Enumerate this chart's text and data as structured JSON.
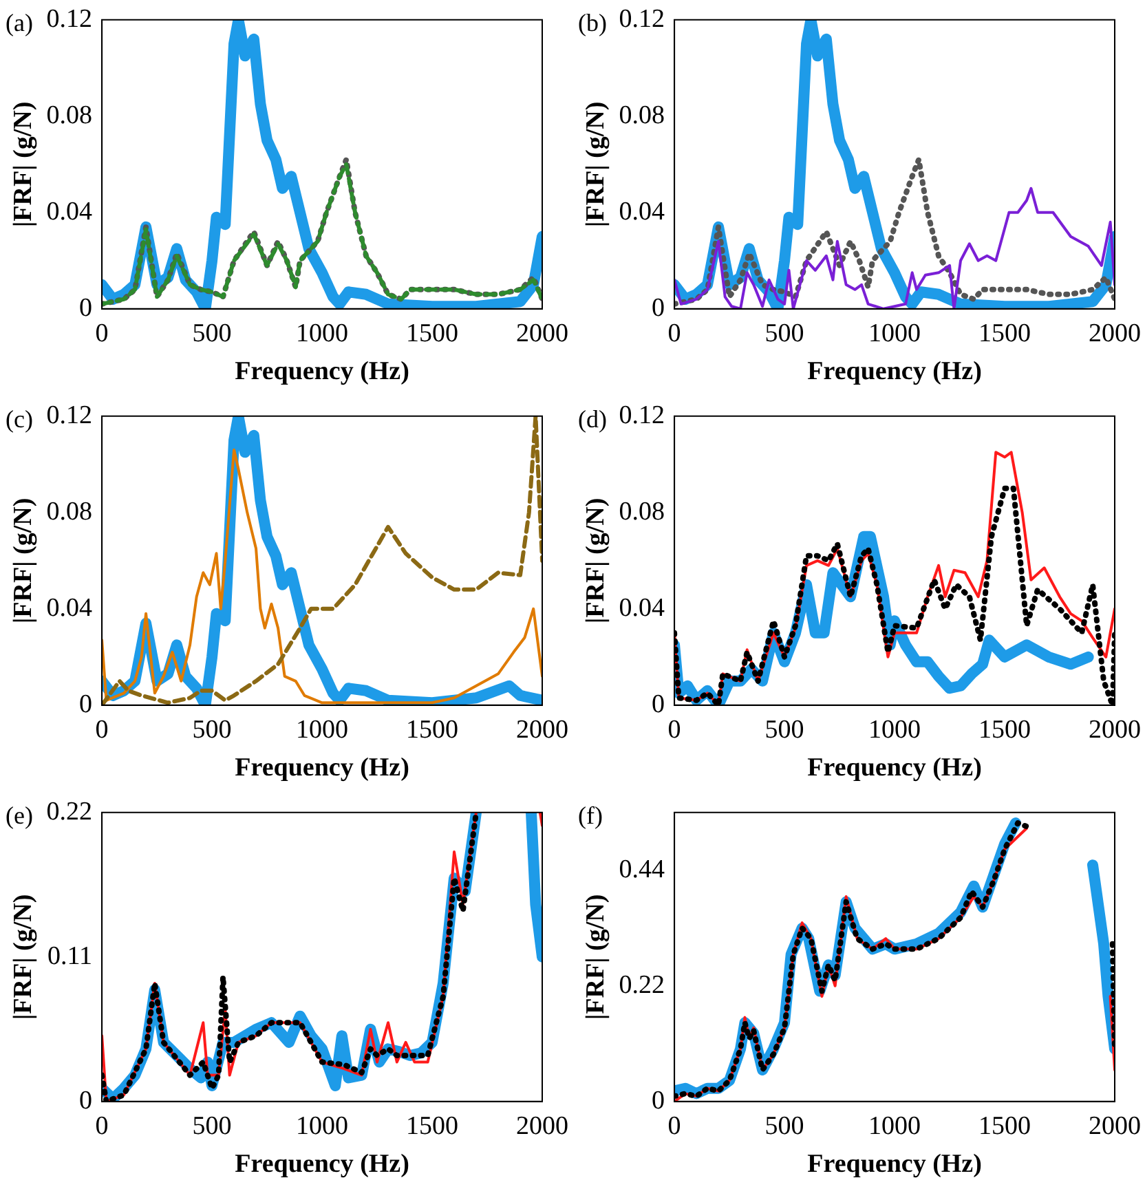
{
  "chart_data": [
    {
      "type": "line",
      "title": "(a)",
      "xlabel": "Frequency (Hz)",
      "ylabel": "|FRF| (g/N)",
      "xlim": [
        0,
        2000
      ],
      "xticks": [
        0,
        500,
        1000,
        1500,
        2000
      ],
      "ylim": [
        0,
        0.12
      ],
      "yticks": [
        0,
        0.04,
        0.08,
        0.12
      ],
      "grid": false,
      "series": [
        {
          "color": "#1e9be8",
          "line_style": "solid",
          "x": [
            0,
            50,
            100,
            150,
            200,
            250,
            300,
            340,
            380,
            430,
            470,
            500,
            520,
            560,
            600,
            620,
            650,
            690,
            720,
            750,
            790,
            820,
            860,
            900,
            940,
            1000,
            1050,
            1080,
            1120,
            1200,
            1300,
            1500,
            1700,
            1900,
            1960,
            2000
          ],
          "values": [
            0.01,
            0.004,
            0.006,
            0.01,
            0.034,
            0.01,
            0.013,
            0.025,
            0.012,
            0.007,
            0.0,
            0.02,
            0.038,
            0.035,
            0.11,
            0.12,
            0.105,
            0.112,
            0.085,
            0.07,
            0.062,
            0.05,
            0.055,
            0.04,
            0.025,
            0.015,
            0.005,
            0.002,
            0.007,
            0.006,
            0.002,
            0.001,
            0.001,
            0.003,
            0.01,
            0.03
          ]
        },
        {
          "color": "#555555",
          "line_style": "dotted",
          "x": [
            0,
            100,
            150,
            200,
            250,
            300,
            340,
            400,
            450,
            500,
            550,
            600,
            690,
            750,
            800,
            840,
            880,
            900,
            980,
            1020,
            1080,
            1110,
            1150,
            1200,
            1250,
            1300,
            1360,
            1400,
            1600,
            1700,
            1800,
            1900,
            1960,
            2000
          ],
          "values": [
            0.002,
            0.004,
            0.008,
            0.034,
            0.005,
            0.012,
            0.023,
            0.01,
            0.008,
            0.007,
            0.005,
            0.02,
            0.032,
            0.018,
            0.028,
            0.02,
            0.009,
            0.02,
            0.028,
            0.04,
            0.055,
            0.062,
            0.04,
            0.022,
            0.015,
            0.006,
            0.004,
            0.008,
            0.008,
            0.006,
            0.006,
            0.008,
            0.013,
            0.004
          ]
        },
        {
          "color": "#2e8b2e",
          "line_style": "dashed",
          "x": [
            0,
            100,
            150,
            200,
            250,
            300,
            340,
            400,
            450,
            500,
            550,
            600,
            690,
            750,
            800,
            840,
            880,
            900,
            980,
            1020,
            1080,
            1110,
            1150,
            1200,
            1250,
            1300,
            1360,
            1400,
            1600,
            1700,
            1800,
            1900,
            1960,
            2000
          ],
          "values": [
            0.002,
            0.004,
            0.008,
            0.033,
            0.005,
            0.012,
            0.022,
            0.01,
            0.008,
            0.007,
            0.005,
            0.02,
            0.031,
            0.018,
            0.027,
            0.02,
            0.009,
            0.02,
            0.028,
            0.04,
            0.055,
            0.06,
            0.04,
            0.022,
            0.015,
            0.006,
            0.004,
            0.008,
            0.008,
            0.006,
            0.006,
            0.008,
            0.012,
            0.004
          ]
        }
      ]
    },
    {
      "type": "line",
      "title": "(b)",
      "xlabel": "Frequency (Hz)",
      "ylabel": "|FRF| (g/N)",
      "xlim": [
        0,
        2000
      ],
      "xticks": [
        0,
        500,
        1000,
        1500,
        2000
      ],
      "ylim": [
        0,
        0.12
      ],
      "yticks": [
        0,
        0.04,
        0.08,
        0.12
      ],
      "grid": false,
      "series": [
        {
          "color": "#1e9be8",
          "line_style": "solid",
          "x": [
            0,
            50,
            100,
            150,
            200,
            250,
            300,
            340,
            380,
            430,
            470,
            500,
            520,
            560,
            600,
            620,
            650,
            690,
            720,
            750,
            790,
            820,
            860,
            900,
            940,
            1000,
            1050,
            1080,
            1120,
            1200,
            1300,
            1500,
            1700,
            1900,
            1960,
            2000
          ],
          "values": [
            0.01,
            0.004,
            0.006,
            0.01,
            0.034,
            0.01,
            0.013,
            0.025,
            0.012,
            0.007,
            0.0,
            0.02,
            0.038,
            0.035,
            0.11,
            0.12,
            0.105,
            0.112,
            0.085,
            0.07,
            0.062,
            0.05,
            0.055,
            0.04,
            0.025,
            0.015,
            0.005,
            0.002,
            0.007,
            0.006,
            0.002,
            0.001,
            0.001,
            0.003,
            0.01,
            0.03
          ]
        },
        {
          "color": "#555555",
          "line_style": "dotted",
          "x": [
            0,
            100,
            150,
            200,
            250,
            300,
            340,
            400,
            450,
            500,
            550,
            600,
            690,
            750,
            800,
            840,
            880,
            900,
            980,
            1020,
            1080,
            1110,
            1150,
            1200,
            1250,
            1300,
            1360,
            1400,
            1600,
            1700,
            1800,
            1900,
            1960,
            2000
          ],
          "values": [
            0.002,
            0.004,
            0.008,
            0.034,
            0.005,
            0.012,
            0.023,
            0.01,
            0.008,
            0.007,
            0.005,
            0.02,
            0.032,
            0.018,
            0.028,
            0.02,
            0.009,
            0.02,
            0.028,
            0.04,
            0.055,
            0.062,
            0.04,
            0.022,
            0.015,
            0.006,
            0.004,
            0.008,
            0.008,
            0.006,
            0.006,
            0.008,
            0.013,
            0.004
          ]
        },
        {
          "color": "#7a1fd6",
          "line_style": "solid",
          "x": [
            0,
            30,
            100,
            150,
            200,
            230,
            260,
            300,
            330,
            360,
            400,
            430,
            470,
            500,
            520,
            540,
            600,
            640,
            690,
            720,
            740,
            780,
            820,
            850,
            880,
            950,
            1050,
            1080,
            1100,
            1140,
            1200,
            1250,
            1270,
            1300,
            1340,
            1380,
            1420,
            1460,
            1520,
            1560,
            1600,
            1620,
            1650,
            1720,
            1800,
            1880,
            1940,
            1980,
            2000
          ],
          "values": [
            0.012,
            0.002,
            0.004,
            0.008,
            0.028,
            0.005,
            0.001,
            0.0,
            0.015,
            0.01,
            0.001,
            0.012,
            0.004,
            0.002,
            0.016,
            0.0,
            0.02,
            0.016,
            0.022,
            0.012,
            0.028,
            0.01,
            0.008,
            0.01,
            0.002,
            0.0,
            0.002,
            0.015,
            0.008,
            0.014,
            0.015,
            0.018,
            0.0,
            0.02,
            0.027,
            0.02,
            0.022,
            0.02,
            0.04,
            0.04,
            0.045,
            0.05,
            0.04,
            0.04,
            0.03,
            0.026,
            0.018,
            0.036,
            0.01
          ]
        }
      ]
    },
    {
      "type": "line",
      "title": "(c)",
      "xlabel": "Frequency (Hz)",
      "ylabel": "|FRF| (g/N)",
      "xlim": [
        0,
        2000
      ],
      "xticks": [
        0,
        500,
        1000,
        1500,
        2000
      ],
      "ylim": [
        0,
        0.12
      ],
      "yticks": [
        0,
        0.04,
        0.08,
        0.12
      ],
      "grid": false,
      "series": [
        {
          "color": "#1e9be8",
          "line_style": "solid",
          "x": [
            0,
            50,
            100,
            150,
            200,
            250,
            300,
            340,
            380,
            430,
            470,
            500,
            520,
            560,
            600,
            620,
            650,
            690,
            720,
            750,
            790,
            820,
            860,
            900,
            940,
            1000,
            1050,
            1080,
            1120,
            1200,
            1300,
            1500,
            1700,
            1850,
            1900,
            2000
          ],
          "values": [
            0.01,
            0.004,
            0.006,
            0.01,
            0.034,
            0.01,
            0.013,
            0.025,
            0.012,
            0.007,
            0.0,
            0.02,
            0.038,
            0.035,
            0.11,
            0.12,
            0.105,
            0.112,
            0.085,
            0.07,
            0.062,
            0.05,
            0.055,
            0.04,
            0.025,
            0.015,
            0.005,
            0.002,
            0.007,
            0.006,
            0.002,
            0.001,
            0.003,
            0.008,
            0.004,
            0.002
          ]
        },
        {
          "color": "#e07b00",
          "line_style": "solid",
          "x": [
            0,
            20,
            100,
            150,
            180,
            200,
            240,
            280,
            320,
            360,
            400,
            430,
            460,
            490,
            520,
            540,
            560,
            600,
            620,
            660,
            700,
            720,
            740,
            770,
            800,
            830,
            880,
            920,
            1000,
            1500,
            1600,
            1700,
            1800,
            1870,
            1920,
            1960,
            2000
          ],
          "values": [
            0.027,
            0.002,
            0.005,
            0.01,
            0.02,
            0.038,
            0.005,
            0.012,
            0.022,
            0.01,
            0.025,
            0.045,
            0.055,
            0.05,
            0.063,
            0.04,
            0.06,
            0.106,
            0.098,
            0.08,
            0.065,
            0.04,
            0.032,
            0.042,
            0.032,
            0.012,
            0.01,
            0.004,
            0.001,
            0.001,
            0.003,
            0.008,
            0.013,
            0.022,
            0.028,
            0.04,
            0.012
          ]
        },
        {
          "color": "#8b6914",
          "line_style": "dashed",
          "x": [
            0,
            80,
            120,
            180,
            300,
            400,
            450,
            500,
            560,
            600,
            700,
            800,
            900,
            950,
            1050,
            1150,
            1250,
            1300,
            1380,
            1500,
            1600,
            1700,
            1800,
            1900,
            1940,
            1970,
            2000
          ],
          "values": [
            0.0,
            0.01,
            0.006,
            0.004,
            0.001,
            0.003,
            0.006,
            0.006,
            0.002,
            0.004,
            0.01,
            0.017,
            0.032,
            0.04,
            0.04,
            0.05,
            0.066,
            0.074,
            0.063,
            0.053,
            0.048,
            0.048,
            0.055,
            0.054,
            0.08,
            0.12,
            0.06
          ]
        }
      ]
    },
    {
      "type": "line",
      "title": "(d)",
      "xlabel": "Frequency (Hz)",
      "ylabel": "|FRF| (g/N)",
      "xlim": [
        0,
        2000
      ],
      "xticks": [
        0,
        500,
        1000,
        1500,
        2000
      ],
      "ylim": [
        0,
        0.12
      ],
      "yticks": [
        0,
        0.04,
        0.08,
        0.12
      ],
      "grid": false,
      "series": [
        {
          "color": "#1e9be8",
          "line_style": "solid",
          "x": [
            0,
            20,
            60,
            100,
            150,
            200,
            250,
            300,
            350,
            400,
            450,
            500,
            550,
            600,
            640,
            680,
            720,
            760,
            800,
            860,
            890,
            950,
            980,
            1000,
            1050,
            1100,
            1150,
            1200,
            1250,
            1300,
            1350,
            1400,
            1430,
            1500,
            1600,
            1700,
            1800,
            1880
          ],
          "values": [
            0.025,
            0.005,
            0.008,
            0.002,
            0.006,
            0.0,
            0.01,
            0.01,
            0.015,
            0.01,
            0.03,
            0.018,
            0.03,
            0.05,
            0.03,
            0.03,
            0.055,
            0.05,
            0.045,
            0.07,
            0.07,
            0.045,
            0.025,
            0.035,
            0.025,
            0.018,
            0.018,
            0.012,
            0.007,
            0.008,
            0.013,
            0.017,
            0.027,
            0.02,
            0.025,
            0.02,
            0.017,
            0.02
          ]
        },
        {
          "color": "#ff1a1a",
          "line_style": "solid",
          "x": [
            0,
            20,
            100,
            150,
            200,
            220,
            300,
            330,
            380,
            450,
            500,
            550,
            600,
            650,
            700,
            740,
            800,
            850,
            880,
            920,
            970,
            1000,
            1100,
            1150,
            1200,
            1230,
            1270,
            1320,
            1380,
            1420,
            1460,
            1500,
            1530,
            1580,
            1620,
            1680,
            1750,
            1800,
            1850,
            1900,
            1960,
            2000
          ],
          "values": [
            0.03,
            0.003,
            0.002,
            0.005,
            0.0,
            0.013,
            0.01,
            0.023,
            0.01,
            0.03,
            0.02,
            0.032,
            0.058,
            0.06,
            0.058,
            0.065,
            0.045,
            0.06,
            0.063,
            0.05,
            0.02,
            0.03,
            0.03,
            0.045,
            0.058,
            0.045,
            0.056,
            0.055,
            0.045,
            0.06,
            0.105,
            0.103,
            0.105,
            0.08,
            0.052,
            0.057,
            0.045,
            0.038,
            0.035,
            0.028,
            0.02,
            0.04
          ]
        },
        {
          "color": "#000000",
          "line_style": "dotted",
          "x": [
            0,
            20,
            100,
            150,
            200,
            220,
            300,
            330,
            380,
            450,
            500,
            550,
            600,
            650,
            700,
            740,
            800,
            850,
            880,
            920,
            970,
            1000,
            1100,
            1180,
            1230,
            1280,
            1340,
            1390,
            1440,
            1500,
            1540,
            1600,
            1650,
            1750,
            1850,
            1900,
            1950,
            1990,
            2000
          ],
          "values": [
            0.03,
            0.003,
            0.002,
            0.005,
            0.0,
            0.013,
            0.01,
            0.022,
            0.01,
            0.035,
            0.02,
            0.033,
            0.062,
            0.062,
            0.06,
            0.067,
            0.045,
            0.062,
            0.065,
            0.05,
            0.022,
            0.033,
            0.032,
            0.052,
            0.04,
            0.05,
            0.045,
            0.027,
            0.07,
            0.09,
            0.09,
            0.033,
            0.048,
            0.04,
            0.03,
            0.05,
            0.01,
            0.0,
            0.03
          ]
        }
      ]
    },
    {
      "type": "line",
      "title": "(e)",
      "xlabel": "Frequency (Hz)",
      "ylabel": "|FRF| (g/N)",
      "xlim": [
        0,
        2000
      ],
      "xticks": [
        0,
        500,
        1000,
        1500,
        2000
      ],
      "ylim": [
        0,
        0.22
      ],
      "yticks": [
        0,
        0.11,
        0.22
      ],
      "grid": false,
      "series": [
        {
          "color": "#1e9be8",
          "line_style": "solid",
          "x": [
            0,
            50,
            100,
            150,
            200,
            240,
            280,
            340,
            400,
            450,
            480,
            500,
            550,
            600,
            700,
            770,
            850,
            900,
            950,
            1000,
            1060,
            1090,
            1120,
            1180,
            1220,
            1260,
            1300,
            1350,
            1400,
            1450,
            1500,
            1550,
            1600,
            1650,
            1700,
            1800,
            1950,
            1970,
            2000
          ],
          "values": [
            0.01,
            0.002,
            0.01,
            0.02,
            0.04,
            0.085,
            0.045,
            0.035,
            0.025,
            0.018,
            0.03,
            0.012,
            0.045,
            0.045,
            0.055,
            0.06,
            0.045,
            0.065,
            0.05,
            0.04,
            0.012,
            0.05,
            0.018,
            0.02,
            0.055,
            0.03,
            0.04,
            0.038,
            0.035,
            0.037,
            0.045,
            0.09,
            0.17,
            0.16,
            0.22,
            null,
            0.22,
            0.15,
            0.11
          ]
        },
        {
          "color": "#ff1a1a",
          "line_style": "solid",
          "x": [
            0,
            20,
            100,
            200,
            240,
            280,
            400,
            460,
            480,
            530,
            560,
            580,
            620,
            700,
            770,
            900,
            1000,
            1100,
            1180,
            1220,
            1250,
            1300,
            1340,
            1380,
            1420,
            1480,
            1550,
            1600,
            1640,
            1700,
            1800,
            1990,
            2000
          ],
          "values": [
            0.05,
            0.0,
            0.005,
            0.04,
            0.09,
            0.045,
            0.02,
            0.06,
            0.02,
            0.02,
            0.07,
            0.02,
            0.045,
            0.05,
            0.06,
            0.06,
            0.03,
            0.025,
            0.02,
            0.055,
            0.03,
            0.06,
            0.03,
            0.045,
            0.03,
            0.03,
            0.08,
            0.19,
            0.15,
            0.22,
            null,
            0.22,
            0.21
          ]
        },
        {
          "color": "#000000",
          "line_style": "dotted",
          "x": [
            0,
            20,
            100,
            200,
            240,
            280,
            400,
            460,
            500,
            530,
            550,
            580,
            620,
            700,
            770,
            900,
            1000,
            1100,
            1180,
            1220,
            1250,
            1300,
            1340,
            1380,
            1420,
            1480,
            1550,
            1600,
            1640,
            1700
          ],
          "values": [
            0.02,
            0.0,
            0.005,
            0.04,
            0.09,
            0.045,
            0.02,
            0.03,
            0.01,
            0.02,
            0.095,
            0.03,
            0.045,
            0.05,
            0.06,
            0.06,
            0.03,
            0.028,
            0.022,
            0.04,
            0.035,
            0.04,
            0.035,
            0.035,
            0.035,
            0.035,
            0.08,
            0.17,
            0.145,
            0.22
          ]
        }
      ]
    },
    {
      "type": "line",
      "title": "(f)",
      "xlabel": "Frequency (Hz)",
      "ylabel": "|FRF| (g/N)",
      "xlim": [
        0,
        2000
      ],
      "xticks": [
        0,
        500,
        1000,
        1500,
        2000
      ],
      "ylim": [
        0,
        0.55
      ],
      "yticks": [
        0,
        0.22,
        0.44
      ],
      "grid": false,
      "series": [
        {
          "color": "#1e9be8",
          "line_style": "solid",
          "x": [
            0,
            50,
            100,
            150,
            200,
            250,
            300,
            320,
            360,
            400,
            450,
            500,
            530,
            580,
            610,
            660,
            700,
            730,
            780,
            820,
            900,
            960,
            1000,
            1100,
            1200,
            1300,
            1360,
            1400,
            1450,
            1500,
            1550,
            1620,
            1700,
            1830,
            1900,
            1950,
            1970,
            2000
          ],
          "values": [
            0.02,
            0.025,
            0.015,
            0.025,
            0.025,
            0.04,
            0.1,
            0.15,
            0.13,
            0.06,
            0.1,
            0.15,
            0.28,
            0.33,
            0.31,
            0.21,
            0.26,
            0.24,
            0.38,
            0.33,
            0.29,
            0.3,
            0.29,
            0.3,
            0.32,
            0.36,
            0.41,
            0.37,
            0.43,
            0.49,
            0.53,
            null,
            null,
            null,
            0.45,
            0.3,
            0.2,
            0.1
          ]
        },
        {
          "color": "#ff1a1a",
          "line_style": "solid",
          "x": [
            0,
            50,
            100,
            150,
            200,
            250,
            300,
            320,
            340,
            360,
            400,
            450,
            500,
            540,
            580,
            620,
            670,
            700,
            730,
            780,
            830,
            900,
            960,
            1000,
            1100,
            1200,
            1300,
            1360,
            1400,
            1450,
            1500,
            1550,
            1600,
            1640,
            1800,
            1960,
            1980,
            2000
          ],
          "values": [
            0.0,
            0.015,
            0.01,
            0.025,
            0.02,
            0.04,
            0.1,
            0.16,
            0.12,
            0.14,
            0.06,
            0.09,
            0.14,
            0.28,
            0.34,
            0.31,
            0.2,
            0.26,
            0.22,
            0.39,
            0.31,
            0.29,
            0.31,
            0.29,
            0.29,
            0.31,
            0.35,
            0.39,
            0.37,
            0.42,
            0.48,
            0.5,
            0.52,
            null,
            null,
            null,
            0.2,
            0.06
          ]
        },
        {
          "color": "#000000",
          "line_style": "dotted",
          "x": [
            0,
            50,
            100,
            150,
            200,
            250,
            300,
            320,
            340,
            360,
            400,
            450,
            500,
            540,
            580,
            620,
            670,
            700,
            730,
            780,
            830,
            900,
            960,
            1000,
            1100,
            1200,
            1300,
            1350,
            1400,
            1450,
            1500,
            1560,
            1620,
            1650,
            1800,
            1970,
            1990,
            2000
          ],
          "values": [
            0.01,
            0.015,
            0.01,
            0.025,
            0.02,
            0.04,
            0.1,
            0.15,
            0.12,
            0.135,
            0.06,
            0.09,
            0.14,
            0.28,
            0.33,
            0.31,
            0.21,
            0.26,
            0.23,
            0.38,
            0.31,
            0.29,
            0.3,
            0.29,
            0.29,
            0.31,
            0.35,
            0.4,
            0.37,
            0.42,
            0.48,
            0.53,
            0.52,
            null,
            null,
            null,
            0.3,
            0.1
          ]
        }
      ]
    }
  ]
}
